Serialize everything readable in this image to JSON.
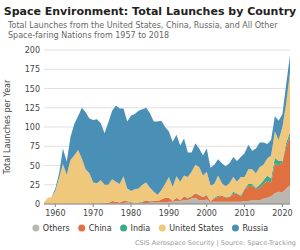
{
  "chart_data": {
    "type": "area",
    "stacked": true,
    "title": "Space Environment: Total Launches by Country",
    "subtitle": "Total Launches from the United States, China, Russia, and All Other Space-faring Nations from 1957 to 2018",
    "ylabel": "Total Launches per Year",
    "source": "CSIS Aerospace Security | Source: Space-Tracking",
    "x": [
      1957,
      1958,
      1959,
      1960,
      1961,
      1962,
      1963,
      1964,
      1965,
      1966,
      1967,
      1968,
      1969,
      1970,
      1971,
      1972,
      1973,
      1974,
      1975,
      1976,
      1977,
      1978,
      1979,
      1980,
      1981,
      1982,
      1983,
      1984,
      1985,
      1986,
      1987,
      1988,
      1989,
      1990,
      1991,
      1992,
      1993,
      1994,
      1995,
      1996,
      1997,
      1998,
      1999,
      2000,
      2001,
      2002,
      2003,
      2004,
      2005,
      2006,
      2007,
      2008,
      2009,
      2010,
      2011,
      2012,
      2013,
      2014,
      2015,
      2016,
      2017,
      2018,
      2019,
      2020,
      2021,
      2022
    ],
    "series": [
      {
        "name": "Others",
        "color": "#b8b8b0",
        "values": [
          0,
          0,
          0,
          0,
          0,
          0,
          0,
          0,
          0,
          0,
          0,
          0,
          0,
          0,
          0,
          0,
          1,
          0,
          1,
          1,
          1,
          1,
          3,
          1,
          1,
          1,
          1,
          1,
          2,
          2,
          2,
          2,
          2,
          3,
          3,
          4,
          4,
          5,
          5,
          7,
          8,
          5,
          5,
          6,
          3,
          3,
          3,
          3,
          3,
          3,
          3,
          3,
          3,
          4,
          4,
          5,
          5,
          5,
          7,
          8,
          10,
          14,
          16,
          15,
          20,
          24
        ]
      },
      {
        "name": "China",
        "color": "#e07040",
        "values": [
          0,
          0,
          0,
          0,
          0,
          0,
          0,
          0,
          0,
          0,
          0,
          0,
          0,
          1,
          0,
          0,
          1,
          1,
          3,
          2,
          1,
          3,
          1,
          1,
          0,
          1,
          1,
          4,
          1,
          2,
          2,
          4,
          6,
          5,
          1,
          4,
          1,
          5,
          2,
          3,
          6,
          6,
          4,
          5,
          1,
          4,
          6,
          8,
          5,
          6,
          10,
          11,
          6,
          15,
          19,
          19,
          14,
          16,
          19,
          22,
          18,
          39,
          34,
          39,
          55,
          64
        ]
      },
      {
        "name": "India",
        "color": "#3aaa88",
        "values": [
          0,
          0,
          0,
          0,
          0,
          0,
          0,
          0,
          0,
          0,
          0,
          0,
          0,
          0,
          0,
          0,
          0,
          0,
          0,
          0,
          0,
          0,
          0,
          1,
          0,
          0,
          1,
          0,
          1,
          0,
          0,
          0,
          0,
          0,
          0,
          0,
          0,
          0,
          1,
          0,
          0,
          1,
          0,
          1,
          0,
          1,
          2,
          0,
          1,
          0,
          3,
          0,
          2,
          1,
          3,
          2,
          2,
          4,
          5,
          7,
          5,
          7,
          6,
          2,
          5,
          5
        ]
      },
      {
        "name": "United States",
        "color": "#f0c87c",
        "values": [
          2,
          8,
          9,
          17,
          34,
          52,
          38,
          57,
          63,
          70,
          59,
          45,
          40,
          27,
          27,
          31,
          23,
          24,
          28,
          26,
          24,
          32,
          16,
          14,
          18,
          18,
          22,
          23,
          17,
          12,
          8,
          12,
          18,
          27,
          18,
          28,
          24,
          27,
          27,
          32,
          37,
          36,
          28,
          30,
          20,
          18,
          26,
          16,
          14,
          18,
          19,
          15,
          24,
          15,
          19,
          19,
          19,
          23,
          20,
          22,
          30,
          34,
          27,
          44,
          51,
          78
        ]
      },
      {
        "name": "Russia",
        "color": "#4a8fb5",
        "values": [
          0,
          0,
          0,
          3,
          6,
          20,
          17,
          30,
          41,
          44,
          66,
          74,
          71,
          81,
          83,
          74,
          67,
          81,
          89,
          99,
          98,
          88,
          87,
          98,
          98,
          101,
          98,
          97,
          97,
          91,
          95,
          90,
          74,
          59,
          59,
          54,
          47,
          48,
          32,
          25,
          28,
          24,
          26,
          30,
          23,
          25,
          21,
          26,
          26,
          26,
          26,
          27,
          26,
          31,
          32,
          24,
          32,
          32,
          29,
          19,
          20,
          20,
          25,
          17,
          25,
          22
        ]
      }
    ],
    "xlim": [
      1957,
      2022
    ],
    "xticks": [
      1960,
      1970,
      1980,
      1990,
      2000,
      2010,
      2020
    ],
    "ylim": [
      0,
      200
    ],
    "yticks": [
      0,
      25,
      50,
      75,
      100,
      125,
      150,
      175,
      200
    ],
    "grid": true,
    "legend": "bottom"
  }
}
